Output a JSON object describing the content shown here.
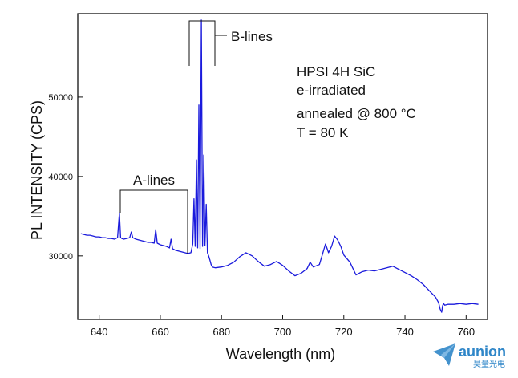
{
  "chart_data": {
    "type": "line",
    "xlabel": "Wavelength (nm)",
    "ylabel": "PL INTENSITY (CPS)",
    "xlim": [
      633,
      767
    ],
    "ylim": [
      22000,
      60500
    ],
    "x_ticks": [
      640,
      660,
      680,
      700,
      720,
      740,
      760
    ],
    "y_ticks": [
      30000,
      40000,
      50000
    ],
    "grid": false,
    "annotations": {
      "info_lines": [
        "HPSI 4H SiC",
        "e-irradiated",
        "annealed @ 800 °C",
        "T = 80 K"
      ],
      "a_lines_label": "A-lines",
      "b_lines_label": "B-lines"
    },
    "series": [
      {
        "color": "#1a1adc",
        "x": [
          634.0,
          635.0,
          636.0,
          637.0,
          638.0,
          639.0,
          640.0,
          641.0,
          642.0,
          643.0,
          644.0,
          645.0,
          646.0,
          646.6,
          647.0,
          647.4,
          648.0,
          649.0,
          650.0,
          650.5,
          651.0,
          652.0,
          653.0,
          654.0,
          655.0,
          656.0,
          657.0,
          658.0,
          658.5,
          659.0,
          659.5,
          660.0,
          661.0,
          662.0,
          663.0,
          663.5,
          664.0,
          665.0,
          666.0,
          667.0,
          668.0,
          669.0,
          670.0,
          670.6,
          671.0,
          671.4,
          671.8,
          672.2,
          672.6,
          673.0,
          673.4,
          673.8,
          674.2,
          674.6,
          675.0,
          675.4,
          675.8,
          676.2,
          676.6,
          677.0,
          678.0,
          680.0,
          682.0,
          684.0,
          686.0,
          688.0,
          690.0,
          692.0,
          694.0,
          696.0,
          698.0,
          700.0,
          702.0,
          704.0,
          706.0,
          708.0,
          709.0,
          710.0,
          712.0,
          713.0,
          714.0,
          715.0,
          716.0,
          717.0,
          718.0,
          719.0,
          720.0,
          722.0,
          724.0,
          726.0,
          728.0,
          730.0,
          732.0,
          734.0,
          736.0,
          738.0,
          740.0,
          742.0,
          744.0,
          746.0,
          748.0,
          750.0,
          751.0,
          751.5,
          752.0,
          752.3,
          752.6,
          753.0,
          754.0,
          756.0,
          758.0,
          760.0,
          762.0,
          764.0
        ],
        "y": [
          32800,
          32700,
          32600,
          32600,
          32500,
          32400,
          32400,
          32300,
          32300,
          32200,
          32200,
          32100,
          32300,
          35400,
          32300,
          32200,
          32100,
          32200,
          32300,
          33000,
          32300,
          32100,
          32000,
          31900,
          31800,
          31700,
          31700,
          31600,
          33300,
          31600,
          31500,
          31400,
          31300,
          31200,
          31000,
          32100,
          30900,
          30700,
          30600,
          30500,
          30400,
          30300,
          30400,
          31500,
          37200,
          31200,
          42100,
          31000,
          49000,
          30900,
          59700,
          31200,
          42700,
          31300,
          36500,
          30400,
          30000,
          29500,
          28900,
          28600,
          28500,
          28600,
          28800,
          29200,
          29900,
          30400,
          30000,
          29300,
          28700,
          28900,
          29300,
          28800,
          28100,
          27500,
          27800,
          28400,
          29200,
          28600,
          28900,
          30200,
          31500,
          30400,
          31200,
          32500,
          32000,
          31200,
          30100,
          29200,
          27600,
          28000,
          28200,
          28100,
          28300,
          28500,
          28700,
          28300,
          27900,
          27500,
          27000,
          26400,
          25600,
          24800,
          24100,
          23300,
          22900,
          23700,
          24000,
          23800,
          23900,
          23900,
          24000,
          23900,
          24000,
          23900
        ]
      }
    ],
    "logo": {
      "text": "aunion",
      "subtext": "昊量光电",
      "color": "#2f86c8"
    }
  }
}
